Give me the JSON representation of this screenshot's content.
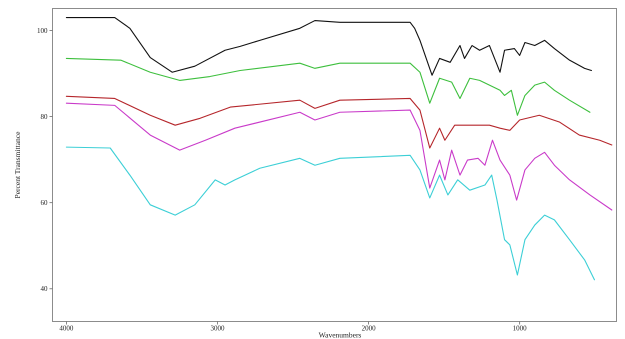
{
  "chart_data": {
    "type": "line",
    "xlabel": "Wavenumbers",
    "ylabel": "Percent Transmittance",
    "xlim": [
      4092,
      359
    ],
    "ylim": [
      32.4,
      105.1
    ],
    "x_axis_reversed": true,
    "x_ticks": [
      4000,
      3000,
      2000,
      1000
    ],
    "x_tick_labels": [
      "4000",
      "3000",
      "2000",
      "1000"
    ],
    "y_ticks": [
      100,
      80,
      60,
      40
    ],
    "y_tick_labels": [
      "100",
      "80",
      "60",
      "40"
    ],
    "grid": false,
    "legend": "none",
    "series": [
      {
        "color": "#111111",
        "x": [
          4000,
          3680,
          3580,
          3445,
          3300,
          3150,
          2950,
          2850,
          2720,
          2455,
          2355,
          2190,
          1725,
          1695,
          1660,
          1580,
          1530,
          1460,
          1395,
          1365,
          1315,
          1265,
          1200,
          1130,
          1100,
          1035,
          1000,
          965,
          900,
          835,
          770,
          670,
          570,
          525
        ],
        "y": [
          103.0,
          103.0,
          100.5,
          93.7,
          90.3,
          91.7,
          95.4,
          96.3,
          97.7,
          100.5,
          102.3,
          101.9,
          101.9,
          100.5,
          97.7,
          89.6,
          93.5,
          92.6,
          96.5,
          93.5,
          96.5,
          95.4,
          96.5,
          90.3,
          95.4,
          95.8,
          94.2,
          97.2,
          96.5,
          97.7,
          95.8,
          93.1,
          91.2,
          90.7
        ]
      },
      {
        "color": "#3dbf3d",
        "x": [
          4000,
          3640,
          3445,
          3250,
          3050,
          2850,
          2455,
          2355,
          2190,
          1725,
          1660,
          1595,
          1530,
          1450,
          1395,
          1330,
          1265,
          1200,
          1130,
          1100,
          1055,
          1015,
          965,
          900,
          835,
          770,
          670,
          535
        ],
        "y": [
          93.5,
          93.1,
          90.3,
          88.4,
          89.3,
          90.7,
          92.4,
          91.2,
          92.4,
          92.4,
          90.3,
          83.1,
          88.9,
          88.0,
          84.2,
          88.9,
          88.4,
          87.3,
          86.1,
          84.9,
          86.1,
          80.3,
          84.9,
          87.3,
          88.0,
          86.1,
          83.8,
          81.0
        ]
      },
      {
        "color": "#b5262b",
        "x": [
          4000,
          3680,
          3445,
          3280,
          3115,
          2915,
          2455,
          2355,
          2190,
          1725,
          1660,
          1595,
          1530,
          1495,
          1430,
          1330,
          1200,
          1130,
          1065,
          1000,
          870,
          735,
          605,
          470,
          390
        ],
        "y": [
          84.7,
          84.2,
          80.3,
          78.0,
          79.6,
          82.2,
          83.8,
          81.9,
          83.8,
          84.2,
          81.5,
          72.7,
          77.3,
          74.5,
          78.0,
          78.0,
          78.0,
          77.3,
          76.8,
          79.2,
          80.3,
          78.7,
          75.7,
          74.5,
          73.4
        ]
      },
      {
        "color": "#c93ac9",
        "x": [
          4000,
          3680,
          3445,
          3250,
          3080,
          2885,
          2455,
          2355,
          2190,
          1725,
          1660,
          1595,
          1530,
          1495,
          1450,
          1395,
          1345,
          1275,
          1230,
          1180,
          1130,
          1065,
          1020,
          965,
          900,
          835,
          770,
          670,
          535,
          390
        ],
        "y": [
          83.1,
          82.6,
          75.7,
          72.2,
          74.5,
          77.3,
          81.0,
          79.2,
          81.0,
          81.5,
          76.8,
          63.4,
          69.9,
          65.3,
          72.2,
          66.4,
          69.9,
          70.3,
          68.7,
          74.5,
          69.9,
          66.4,
          60.6,
          67.6,
          70.3,
          71.7,
          68.7,
          65.3,
          61.8,
          58.3
        ]
      },
      {
        "color": "#3ccfd6",
        "x": [
          4000,
          3710,
          3580,
          3445,
          3280,
          3150,
          3015,
          2950,
          2885,
          2720,
          2455,
          2355,
          2190,
          1725,
          1660,
          1595,
          1530,
          1475,
          1410,
          1330,
          1230,
          1185,
          1150,
          1100,
          1065,
          1015,
          965,
          900,
          835,
          770,
          670,
          570,
          505
        ],
        "y": [
          72.9,
          72.7,
          66.4,
          59.5,
          57.1,
          59.5,
          65.3,
          64.1,
          65.3,
          68.0,
          70.3,
          68.7,
          70.3,
          71.0,
          67.6,
          61.1,
          66.4,
          61.8,
          65.3,
          62.9,
          64.1,
          66.4,
          60.6,
          51.4,
          50.2,
          43.2,
          51.4,
          54.8,
          57.1,
          56.0,
          51.4,
          46.7,
          42.1
        ]
      }
    ]
  }
}
